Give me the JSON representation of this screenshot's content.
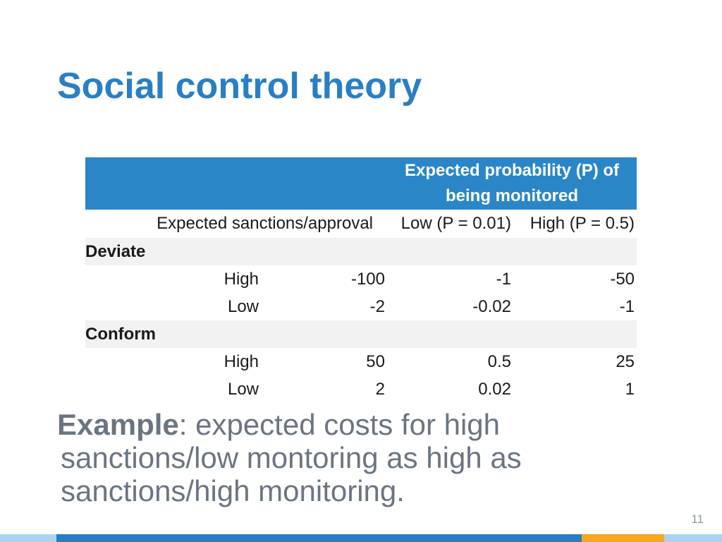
{
  "slide": {
    "title": "Social control theory",
    "page_number": "11"
  },
  "table": {
    "header": "Expected probability (P) of being monitored",
    "subheader": {
      "label": "Expected sanctions/approval",
      "low": "Low (P = 0.01)",
      "high": "High (P = 0.5)"
    },
    "groups": [
      {
        "name": "Deviate",
        "rows": [
          {
            "sanction": "High",
            "value": "-100",
            "low": "-1",
            "high": "-50"
          },
          {
            "sanction": "Low",
            "value": "-2",
            "low": "-0.02",
            "high": "-1"
          }
        ]
      },
      {
        "name": "Conform",
        "rows": [
          {
            "sanction": "High",
            "value": "50",
            "low": "0.5",
            "high": "25"
          },
          {
            "sanction": "Low",
            "value": "2",
            "low": "0.02",
            "high": "1"
          }
        ]
      }
    ]
  },
  "example": {
    "label": "Example",
    "text": ": expected costs for high sanctions/low montoring as high as sanctions/high monitoring."
  },
  "colors": {
    "title": "#2a7fc2",
    "table_header_bg": "#2b86c8",
    "table_header_text": "#ffffff",
    "group_row_bg": "#f2f2f2",
    "body_text": "#1a1a1a",
    "example_text": "#6b7581",
    "page_number": "#8c9aa6",
    "footer_bar": [
      "#a9d4f1",
      "#2a7dc0",
      "#f6a71f",
      "#a9d4f1"
    ]
  }
}
